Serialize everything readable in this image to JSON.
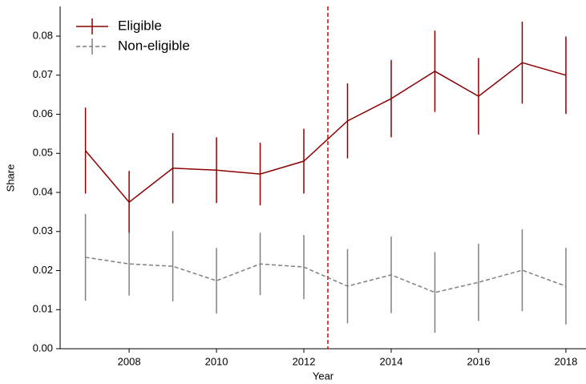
{
  "chart_data": {
    "type": "line",
    "x_label": "Year",
    "y_label": "Share",
    "x": [
      2007,
      2008,
      2009,
      2010,
      2011,
      2012,
      2013,
      2014,
      2015,
      2016,
      2017,
      2018
    ],
    "series": [
      {
        "name": "Eligible",
        "color": "#8b0000",
        "dash": false,
        "values": [
          0.0507,
          0.0375,
          0.0462,
          0.0457,
          0.0447,
          0.048,
          0.0583,
          0.064,
          0.071,
          0.0646,
          0.0732,
          0.07
        ],
        "errors": [
          0.011,
          0.008,
          0.009,
          0.0084,
          0.008,
          0.0083,
          0.0096,
          0.0099,
          0.0104,
          0.0098,
          0.0105,
          0.0099
        ]
      },
      {
        "name": "Non-eligible",
        "color": "#808080",
        "dash": true,
        "values": [
          0.0234,
          0.0217,
          0.0211,
          0.0174,
          0.0217,
          0.0209,
          0.016,
          0.0189,
          0.0144,
          0.017,
          0.0201,
          0.016
        ],
        "errors": [
          0.0111,
          0.0081,
          0.009,
          0.0084,
          0.008,
          0.0082,
          0.0095,
          0.0098,
          0.0103,
          0.0099,
          0.0105,
          0.0098
        ]
      }
    ],
    "vline": {
      "value": 2012.55,
      "color": "#e00000"
    },
    "xlim": [
      2006.42,
      2018.46
    ],
    "ylim": [
      0,
      0.0876
    ],
    "xticks": [
      2008,
      2010,
      2012,
      2014,
      2016,
      2018
    ],
    "yticks": [
      {
        "value": 0,
        "label": "0.00"
      },
      0.01,
      0.02,
      0.03,
      0.04,
      0.05,
      0.06,
      0.07,
      0.08
    ],
    "legend": "upper left",
    "grid": false
  }
}
